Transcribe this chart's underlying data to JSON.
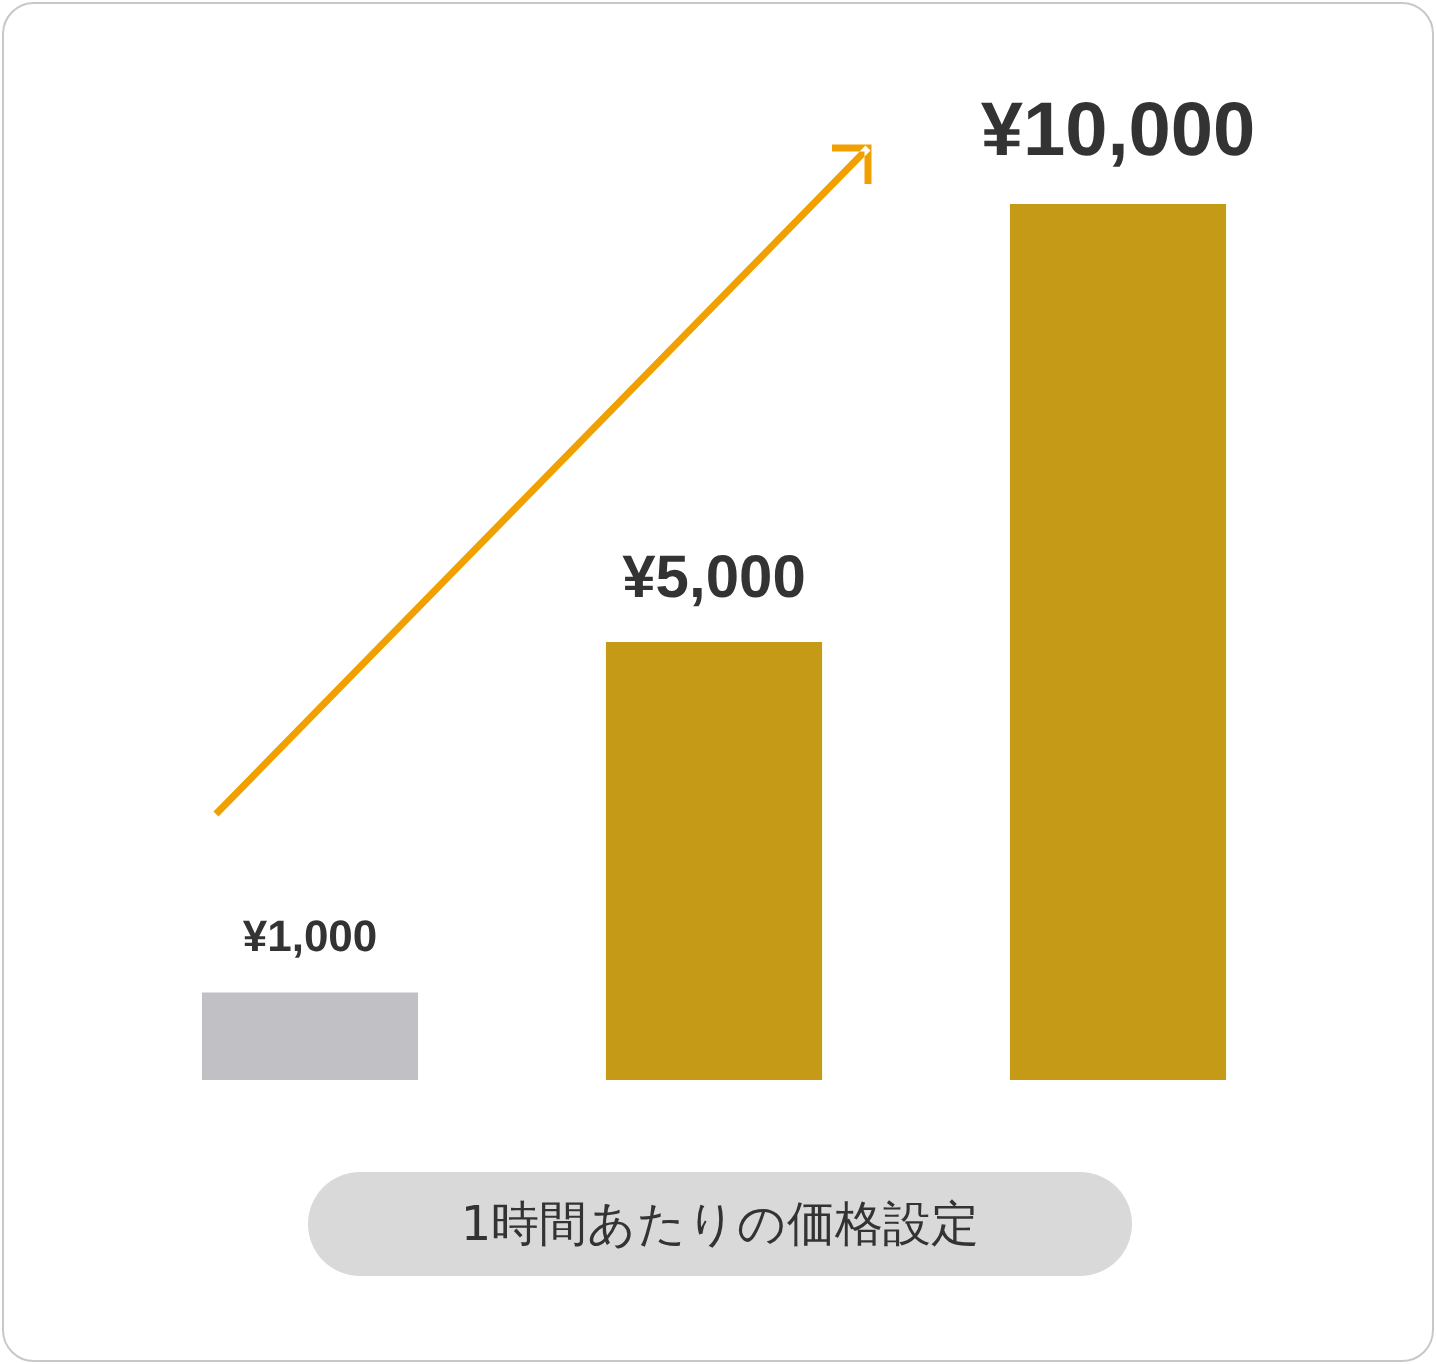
{
  "chart_data": {
    "type": "bar",
    "categories": [
      null,
      null,
      null
    ],
    "xlabel": "1時間あたりの価格設定",
    "values": [
      1000,
      5000,
      10000
    ],
    "colors": [
      "#c1c0c4",
      "#c59a17",
      "#c59a17"
    ],
    "value_labels": [
      "¥1,000",
      "¥5,000",
      "¥10,000"
    ],
    "ylim": [
      0,
      10000
    ],
    "legend": false,
    "grid": false
  }
}
